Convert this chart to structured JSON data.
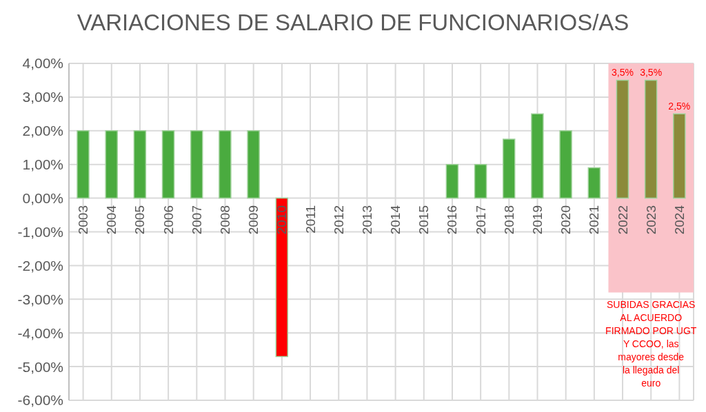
{
  "chart_data": {
    "type": "bar",
    "title": "VARIACIONES DE SALARIO DE FUNCIONARIOS/AS",
    "categories": [
      "2003",
      "2004",
      "2005",
      "2006",
      "2007",
      "2008",
      "2009",
      "2010",
      "2011",
      "2012",
      "2013",
      "2014",
      "2015",
      "2016",
      "2017",
      "2018",
      "2019",
      "2020",
      "2021",
      "2022",
      "2023",
      "2024"
    ],
    "values": [
      2,
      2,
      2,
      2,
      2,
      2,
      2,
      -4.7,
      0,
      0,
      0,
      0,
      0,
      1,
      1,
      1.75,
      2.5,
      2,
      0.9,
      3.5,
      3.5,
      2.5
    ],
    "colors": [
      "#4aab3f",
      "#4aab3f",
      "#4aab3f",
      "#4aab3f",
      "#4aab3f",
      "#4aab3f",
      "#4aab3f",
      "#ff0000",
      "#4aab3f",
      "#4aab3f",
      "#4aab3f",
      "#4aab3f",
      "#4aab3f",
      "#4aab3f",
      "#4aab3f",
      "#4aab3f",
      "#4aab3f",
      "#4aab3f",
      "#4aab3f",
      "#8b8a3a",
      "#8b8a3a",
      "#8b8a3a"
    ],
    "value_labels": [
      null,
      null,
      null,
      null,
      null,
      null,
      null,
      null,
      null,
      null,
      null,
      null,
      null,
      null,
      null,
      null,
      null,
      null,
      null,
      "3,5%",
      "3,5%",
      "2,5%"
    ],
    "ylim": [
      -6,
      4
    ],
    "yticks": [
      {
        "value": -6,
        "label": "-6,00%"
      },
      {
        "value": -5,
        "label": "-5,00%"
      },
      {
        "value": -4,
        "label": "-4,00%"
      },
      {
        "value": -3,
        "label": "-3,00%"
      },
      {
        "value": -2,
        "label": "-2,00%"
      },
      {
        "value": -1,
        "label": "-1,00%"
      },
      {
        "value": 0,
        "label": "0,00%"
      },
      {
        "value": 1,
        "label": "1,00%"
      },
      {
        "value": 2,
        "label": "2,00%"
      },
      {
        "value": 3,
        "label": "3,00%"
      },
      {
        "value": 4,
        "label": "4,00%"
      }
    ],
    "bands": [
      {
        "axis": "x",
        "from": "2022",
        "to": "2024",
        "color": "#fac3c9",
        "label": "SUBIDAS GRACIAS AL ACUERDO FIRMADO POR UGT Y CCOO, las mayores desde la llegada del euro"
      }
    ],
    "grid": true
  }
}
